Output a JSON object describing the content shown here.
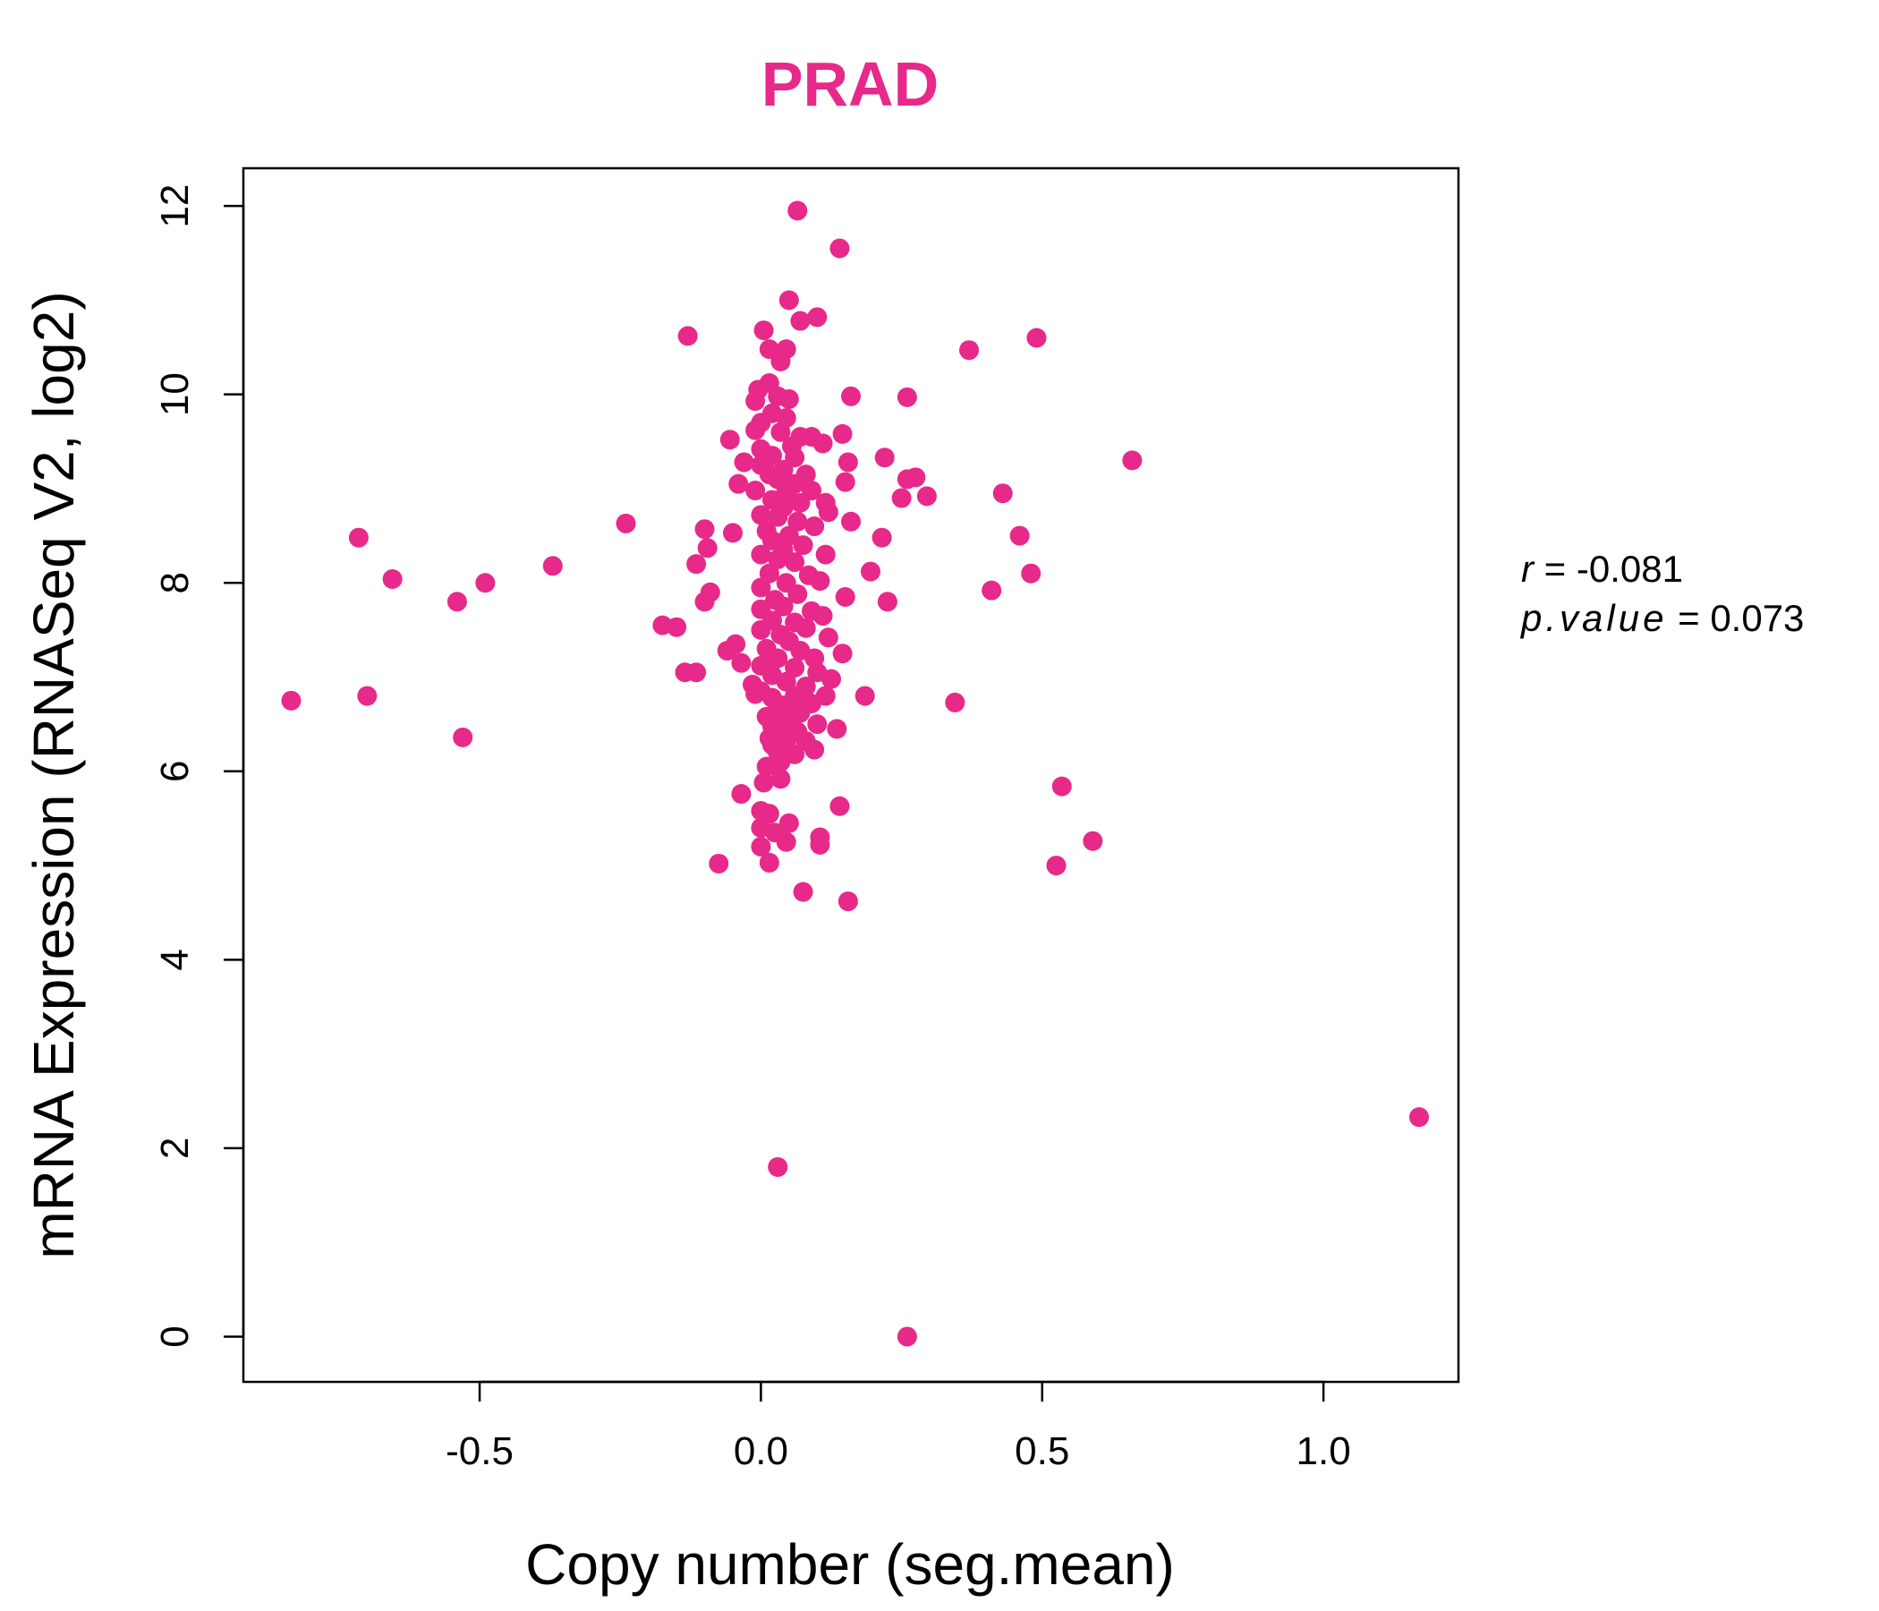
{
  "colors": {
    "points": "#E7298A",
    "title": "#E7298A",
    "axis": "#000000"
  },
  "chart_data": {
    "type": "scatter",
    "title": "PRAD",
    "xlabel": "Copy number (seg.mean)",
    "ylabel": "mRNA Expression (RNASeq V2, log2)",
    "xlim": [
      -0.92,
      1.24
    ],
    "ylim": [
      -0.48,
      12.4
    ],
    "x_ticks": [
      -0.5,
      0.0,
      0.5,
      1.0
    ],
    "x_tick_labels": [
      "-0.5",
      "0.0",
      "0.5",
      "1.0"
    ],
    "y_ticks": [
      0,
      2,
      4,
      6,
      8,
      10,
      12
    ],
    "y_tick_labels": [
      "0",
      "2",
      "4",
      "6",
      "8",
      "10",
      "12"
    ],
    "grid": false,
    "stats": {
      "r_label": "r",
      "r_value": "-0.081",
      "p_label": "p.value",
      "p_value": "0.073"
    },
    "points": [
      [
        0.065,
        11.95
      ],
      [
        0.14,
        11.55
      ],
      [
        0.05,
        11.0
      ],
      [
        0.1,
        10.82
      ],
      [
        0.07,
        10.78
      ],
      [
        0.005,
        10.68
      ],
      [
        -0.13,
        10.62
      ],
      [
        0.015,
        10.48
      ],
      [
        0.045,
        10.48
      ],
      [
        0.035,
        10.35
      ],
      [
        0.49,
        10.6
      ],
      [
        0.37,
        10.47
      ],
      [
        0.015,
        10.12
      ],
      [
        -0.005,
        10.05
      ],
      [
        0.03,
        9.98
      ],
      [
        0.05,
        9.95
      ],
      [
        -0.01,
        9.93
      ],
      [
        0.16,
        9.98
      ],
      [
        0.26,
        9.97
      ],
      [
        0.02,
        9.8
      ],
      [
        0.045,
        9.75
      ],
      [
        0.0,
        9.7
      ],
      [
        -0.01,
        9.62
      ],
      [
        0.035,
        9.6
      ],
      [
        0.07,
        9.55
      ],
      [
        0.09,
        9.55
      ],
      [
        0.145,
        9.58
      ],
      [
        -0.055,
        9.52
      ],
      [
        0.11,
        9.48
      ],
      [
        0.055,
        9.45
      ],
      [
        0.0,
        9.42
      ],
      [
        0.02,
        9.35
      ],
      [
        0.06,
        9.33
      ],
      [
        0.22,
        9.33
      ],
      [
        0.66,
        9.3
      ],
      [
        -0.03,
        9.28
      ],
      [
        0.155,
        9.28
      ],
      [
        0.0,
        9.25
      ],
      [
        0.04,
        9.2
      ],
      [
        0.015,
        9.15
      ],
      [
        0.08,
        9.15
      ],
      [
        0.26,
        9.1
      ],
      [
        0.275,
        9.12
      ],
      [
        0.03,
        9.1
      ],
      [
        0.15,
        9.07
      ],
      [
        -0.04,
        9.05
      ],
      [
        0.06,
        9.05
      ],
      [
        -0.01,
        8.98
      ],
      [
        0.045,
        8.97
      ],
      [
        0.09,
        8.98
      ],
      [
        0.43,
        8.95
      ],
      [
        0.295,
        8.92
      ],
      [
        0.25,
        8.9
      ],
      [
        0.02,
        8.88
      ],
      [
        0.07,
        8.85
      ],
      [
        0.115,
        8.85
      ],
      [
        0.04,
        8.8
      ],
      [
        0.12,
        8.75
      ],
      [
        0.0,
        8.72
      ],
      [
        0.03,
        8.7
      ],
      [
        0.065,
        8.65
      ],
      [
        0.16,
        8.65
      ],
      [
        -0.24,
        8.63
      ],
      [
        0.095,
        8.6
      ],
      [
        -0.1,
        8.57
      ],
      [
        -0.05,
        8.53
      ],
      [
        0.01,
        8.55
      ],
      [
        0.05,
        8.5
      ],
      [
        0.46,
        8.5
      ],
      [
        0.215,
        8.48
      ],
      [
        -0.715,
        8.48
      ],
      [
        0.02,
        8.45
      ],
      [
        0.075,
        8.4
      ],
      [
        -0.095,
        8.37
      ],
      [
        0.04,
        8.35
      ],
      [
        0.0,
        8.3
      ],
      [
        0.115,
        8.3
      ],
      [
        0.03,
        8.25
      ],
      [
        0.06,
        8.22
      ],
      [
        -0.115,
        8.2
      ],
      [
        -0.37,
        8.18
      ],
      [
        0.195,
        8.12
      ],
      [
        0.48,
        8.1
      ],
      [
        0.015,
        8.1
      ],
      [
        0.085,
        8.08
      ],
      [
        0.105,
        8.02
      ],
      [
        -0.655,
        8.04
      ],
      [
        -0.49,
        8.0
      ],
      [
        0.045,
        8.0
      ],
      [
        0.0,
        7.95
      ],
      [
        0.41,
        7.92
      ],
      [
        -0.09,
        7.9
      ],
      [
        0.065,
        7.88
      ],
      [
        0.15,
        7.85
      ],
      [
        0.025,
        7.82
      ],
      [
        -0.1,
        7.8
      ],
      [
        0.225,
        7.8
      ],
      [
        -0.54,
        7.8
      ],
      [
        0.04,
        7.75
      ],
      [
        0.0,
        7.72
      ],
      [
        0.09,
        7.7
      ],
      [
        0.11,
        7.65
      ],
      [
        0.02,
        7.6
      ],
      [
        0.06,
        7.58
      ],
      [
        -0.175,
        7.55
      ],
      [
        -0.15,
        7.53
      ],
      [
        0.08,
        7.52
      ],
      [
        0.0,
        7.5
      ],
      [
        0.035,
        7.45
      ],
      [
        0.12,
        7.42
      ],
      [
        0.05,
        7.38
      ],
      [
        -0.045,
        7.35
      ],
      [
        0.01,
        7.3
      ],
      [
        -0.06,
        7.28
      ],
      [
        0.07,
        7.28
      ],
      [
        0.145,
        7.25
      ],
      [
        0.03,
        7.2
      ],
      [
        0.095,
        7.2
      ],
      [
        -0.035,
        7.15
      ],
      [
        0.0,
        7.12
      ],
      [
        0.06,
        7.1
      ],
      [
        -0.135,
        7.05
      ],
      [
        -0.115,
        7.05
      ],
      [
        0.1,
        7.05
      ],
      [
        0.02,
        7.02
      ],
      [
        0.125,
        6.98
      ],
      [
        0.045,
        6.95
      ],
      [
        -0.015,
        6.92
      ],
      [
        0.08,
        6.9
      ],
      [
        0.0,
        6.85
      ],
      [
        -0.01,
        6.82
      ],
      [
        0.06,
        6.8
      ],
      [
        0.115,
        6.8
      ],
      [
        0.185,
        6.8
      ],
      [
        -0.7,
        6.8
      ],
      [
        0.02,
        6.78
      ],
      [
        -0.835,
        6.75
      ],
      [
        0.345,
        6.73
      ],
      [
        0.04,
        6.7
      ],
      [
        0.09,
        6.72
      ],
      [
        0.03,
        6.65
      ],
      [
        0.07,
        6.62
      ],
      [
        0.01,
        6.58
      ],
      [
        0.05,
        6.55
      ],
      [
        0.1,
        6.5
      ],
      [
        0.02,
        6.48
      ],
      [
        0.135,
        6.45
      ],
      [
        0.065,
        6.42
      ],
      [
        0.035,
        6.38
      ],
      [
        0.015,
        6.35
      ],
      [
        -0.53,
        6.36
      ],
      [
        0.08,
        6.32
      ],
      [
        0.045,
        6.3
      ],
      [
        0.02,
        6.28
      ],
      [
        0.095,
        6.23
      ],
      [
        0.03,
        6.2
      ],
      [
        0.06,
        6.18
      ],
      [
        0.035,
        6.1
      ],
      [
        0.01,
        6.05
      ],
      [
        0.035,
        5.92
      ],
      [
        0.005,
        5.88
      ],
      [
        0.535,
        5.84
      ],
      [
        -0.035,
        5.76
      ],
      [
        0.14,
        5.63
      ],
      [
        0.0,
        5.58
      ],
      [
        0.015,
        5.55
      ],
      [
        0.05,
        5.45
      ],
      [
        0.0,
        5.4
      ],
      [
        0.025,
        5.35
      ],
      [
        0.105,
        5.3
      ],
      [
        0.59,
        5.26
      ],
      [
        0.045,
        5.25
      ],
      [
        0.105,
        5.22
      ],
      [
        0.0,
        5.2
      ],
      [
        -0.075,
        5.02
      ],
      [
        0.015,
        5.03
      ],
      [
        0.525,
        5.0
      ],
      [
        0.075,
        4.72
      ],
      [
        0.155,
        4.62
      ],
      [
        1.17,
        2.33
      ],
      [
        0.03,
        1.8
      ],
      [
        0.26,
        0.0
      ]
    ]
  }
}
